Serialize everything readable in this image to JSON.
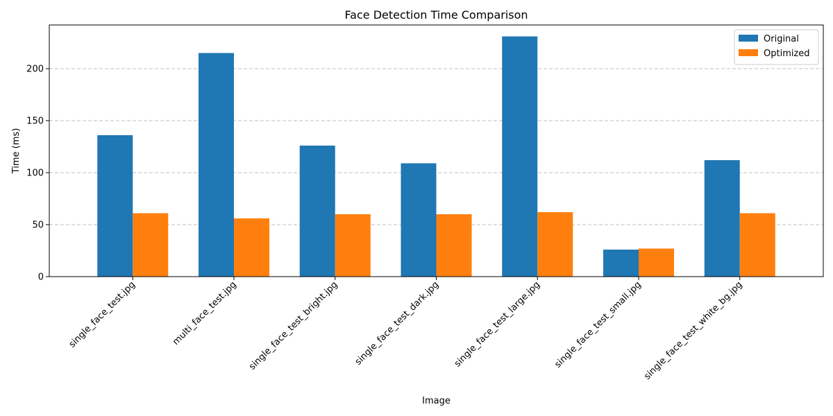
{
  "chart_data": {
    "type": "bar",
    "title": "Face Detection Time Comparison",
    "xlabel": "Image",
    "ylabel": "Time (ms)",
    "ylim": [
      0,
      242
    ],
    "yticks": [
      0,
      50,
      100,
      150,
      200
    ],
    "grid": "y-dashed",
    "legend_position": "top-right",
    "categories": [
      "single_face_test.jpg",
      "multi_face_test.jpg",
      "single_face_test_bright.jpg",
      "single_face_test_dark.jpg",
      "single_face_test_large.jpg",
      "single_face_test_small.jpg",
      "single_face_test_white_bg.jpg"
    ],
    "series": [
      {
        "name": "Original",
        "color": "#1f77b4",
        "values": [
          136,
          215,
          126,
          109,
          231,
          26,
          112
        ]
      },
      {
        "name": "Optimized",
        "color": "#ff7f0e",
        "values": [
          61,
          56,
          60,
          60,
          62,
          27,
          61
        ]
      }
    ]
  }
}
